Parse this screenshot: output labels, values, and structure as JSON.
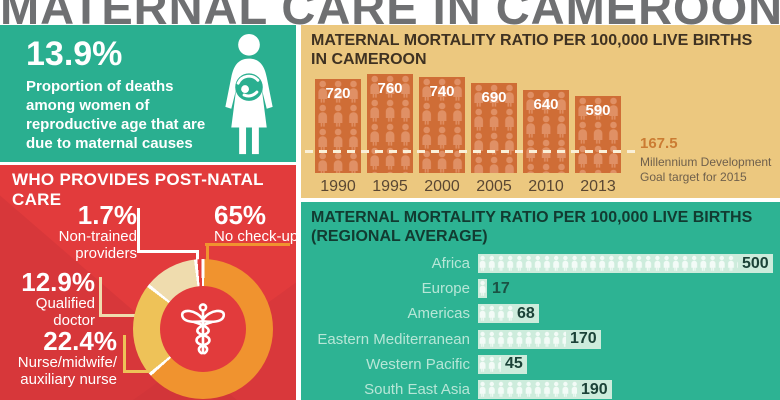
{
  "header": {
    "title": "MATERNAL CARE IN CAMEROON"
  },
  "stat_box": {
    "value": "13.9%",
    "description": "Proportion of deaths\namong women of\nreproductive age that are\ndue to maternal causes"
  },
  "postnatal": {
    "title": "WHO PROVIDES POST-NATAL CARE",
    "callouts": {
      "non_trained": {
        "pct": "1.7%",
        "label": "Non-trained\nproviders"
      },
      "no_checkup": {
        "pct": "65%",
        "label": "No check-up"
      },
      "qualified_doctor": {
        "pct": "12.9%",
        "label": "Qualified\ndoctor"
      },
      "nurse": {
        "pct": "22.4%",
        "label": "Nurse/midwife/\nauxiliary nurse"
      }
    }
  },
  "colors": {
    "teal_panel": "#2aaf90",
    "green_panel": "#2db393",
    "red_panel": "#e23b3c",
    "tan_panel": "#ecc87f",
    "bar_orange": "#cf6d36",
    "donut_orange": "#f0932f",
    "donut_gold": "#eec258",
    "donut_cream": "#efdcae",
    "title_gray": "#6f7072"
  },
  "chart_data": [
    {
      "type": "bar",
      "title": "MATERNAL MORTALITY RATIO PER 100,000 LIVE BIRTHS\nIN CAMEROON",
      "categories": [
        "1990",
        "1995",
        "2000",
        "2005",
        "2010",
        "2013"
      ],
      "values": [
        720,
        760,
        740,
        690,
        640,
        590
      ],
      "ylim": [
        0,
        800
      ],
      "grid": false,
      "target_line": {
        "value": 167.5,
        "label": "167.5",
        "note": "Millennium Development\nGoal target for 2015"
      }
    },
    {
      "type": "bar-horizontal",
      "title": "MATERNAL MORTALITY RATIO PER 100,000 LIVE BIRTHS\n(REGIONAL AVERAGE)",
      "categories": [
        "Africa",
        "Europe",
        "Americas",
        "Eastern Mediterranean",
        "Western Pacific",
        "South East Asia"
      ],
      "values": [
        500,
        17,
        68,
        170,
        45,
        190
      ],
      "xlim": [
        0,
        500
      ],
      "grid": false
    },
    {
      "type": "pie",
      "title": "WHO PROVIDES POST-NATAL CARE",
      "slices": [
        {
          "label": "No check-up",
          "value": 65,
          "color": "#f0932f"
        },
        {
          "label": "Nurse/midwife/auxiliary nurse",
          "value": 22.4,
          "color": "#eec258"
        },
        {
          "label": "Qualified doctor",
          "value": 12.9,
          "color": "#efdcae"
        },
        {
          "label": "Non-trained providers",
          "value": 1.7,
          "color": "#e23b3c"
        }
      ]
    }
  ]
}
